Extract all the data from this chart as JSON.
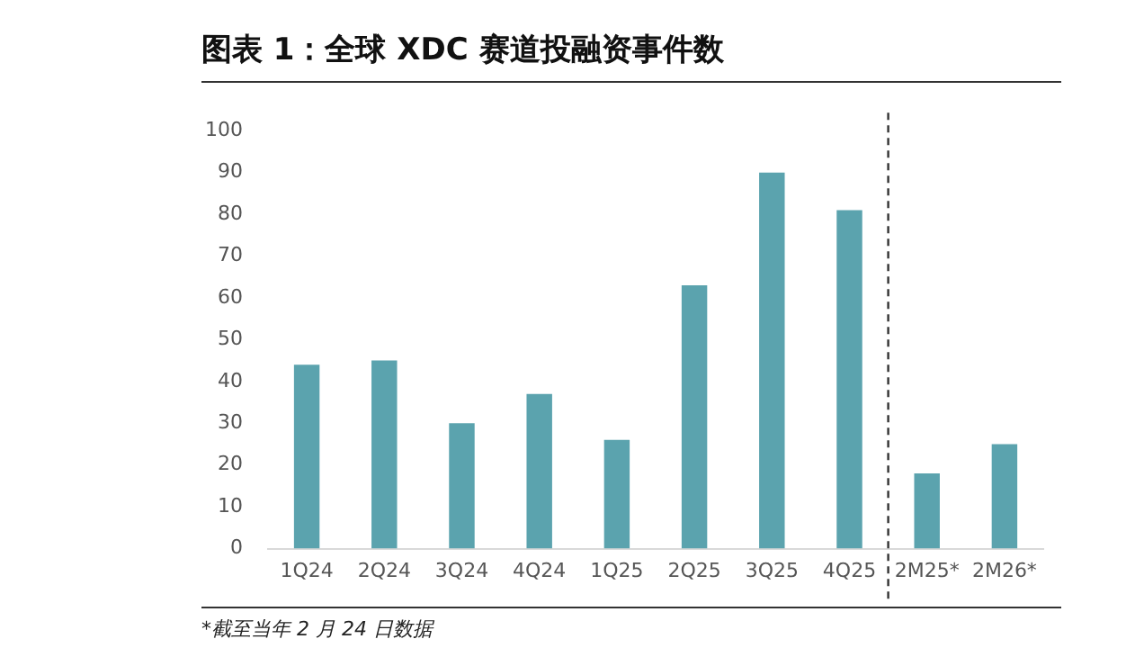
{
  "chart_data": {
    "type": "bar",
    "title": "图表 1：全球 XDC 赛道投融资事件数",
    "categories": [
      "1Q24",
      "2Q24",
      "3Q24",
      "4Q24",
      "1Q25",
      "2Q25",
      "3Q25",
      "4Q25",
      "2M25*",
      "2M26*"
    ],
    "values": [
      44,
      45,
      30,
      37,
      26,
      63,
      90,
      81,
      18,
      25
    ],
    "color": "#5ba3ae",
    "ylim": [
      0,
      100
    ],
    "yticks": [
      0,
      10,
      20,
      30,
      40,
      50,
      60,
      70,
      80,
      90,
      100
    ],
    "grid": false,
    "annotations": [
      "*截至当年 2 月 24 日数据"
    ]
  }
}
